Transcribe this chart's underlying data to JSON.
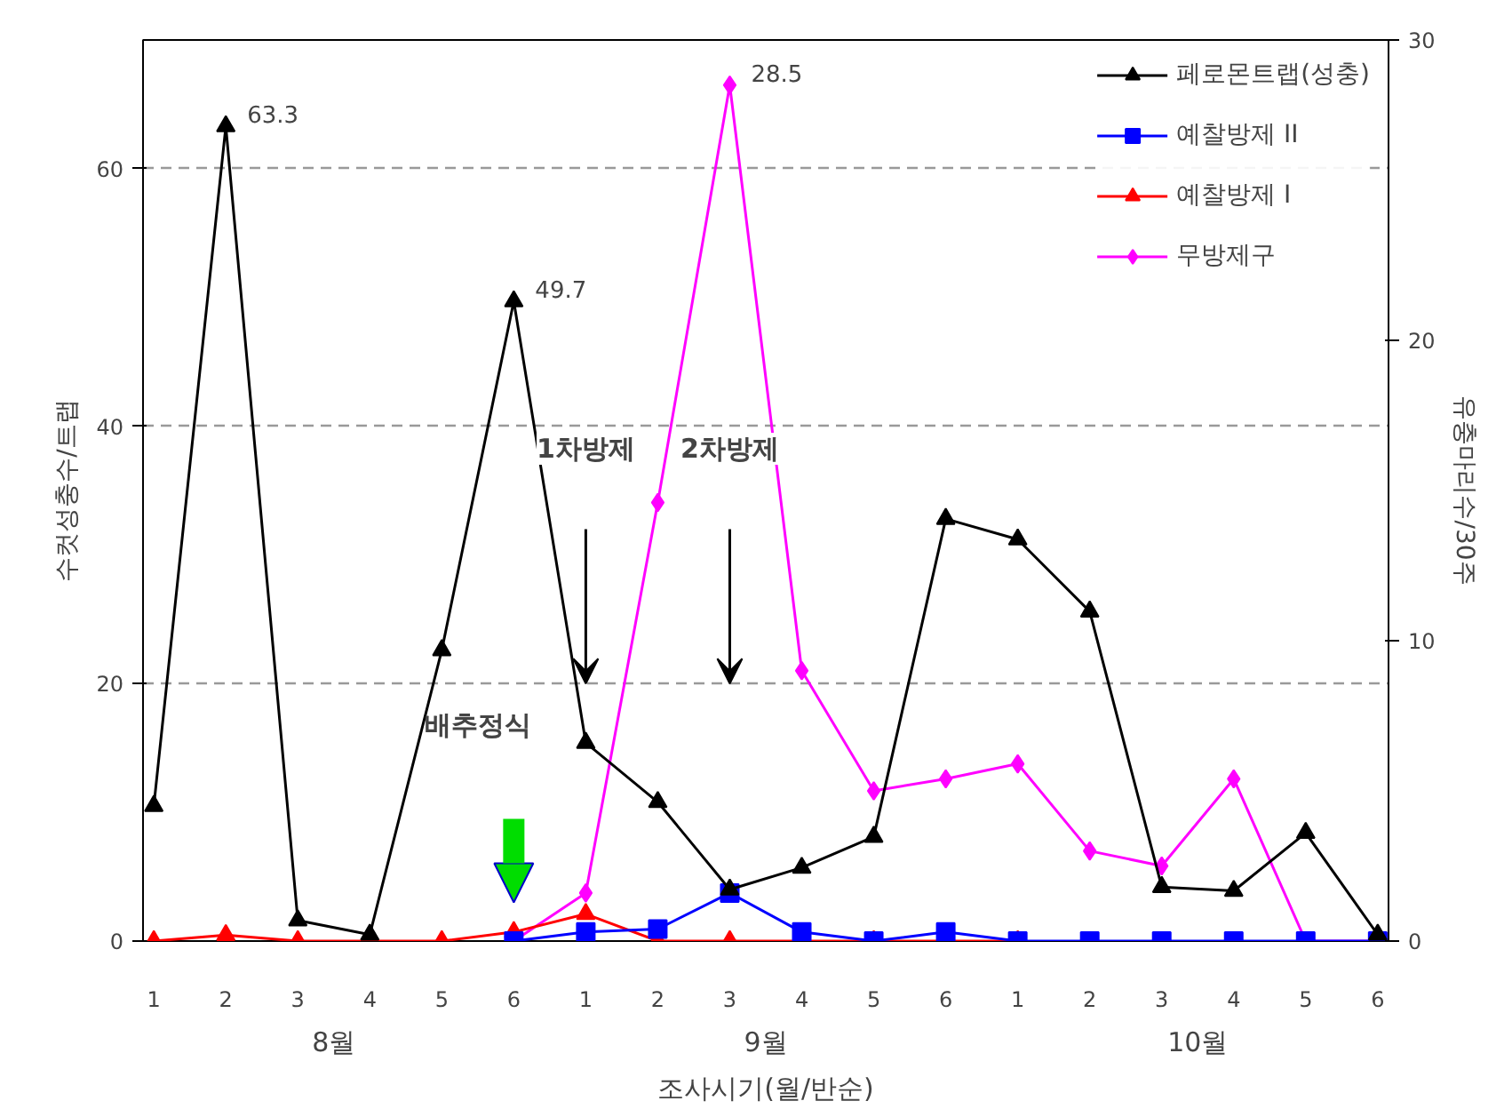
{
  "chart_data": {
    "type": "line",
    "xlabel": "조사시기(월/반순)",
    "ylabel": "수컷성충수/트랩",
    "y2label": "유충마리수/30주",
    "categories": [
      "1",
      "2",
      "3",
      "4",
      "5",
      "6",
      "1",
      "2",
      "3",
      "4",
      "5",
      "6",
      "1",
      "2",
      "3",
      "4",
      "5",
      "6"
    ],
    "ylim": [
      0,
      70
    ],
    "yticks": [
      0,
      20,
      40,
      60
    ],
    "y2lim": [
      0,
      30
    ],
    "y2ticks": [
      0,
      10,
      20,
      30
    ],
    "grid": "y",
    "legend": "top right",
    "series": [
      {
        "name": "페로몬트랩(성충)",
        "color": "#000000",
        "marker": "triangle",
        "values": [
          10.5,
          63.3,
          1.6,
          0.5,
          22.6,
          49.7,
          15.4,
          10.8,
          4.0,
          5.7,
          8.1,
          32.8,
          31.2,
          25.6,
          4.2,
          3.9,
          8.4,
          0.5
        ],
        "value_labels": [
          null,
          "63.3",
          null,
          null,
          null,
          "49.7",
          null,
          null,
          null,
          null,
          null,
          null,
          null,
          null,
          null,
          null,
          null,
          null
        ]
      },
      {
        "name": "예찰방제 II",
        "color": "#0000ff",
        "marker": "square",
        "axis": "y2",
        "values": [
          null,
          null,
          null,
          null,
          null,
          0,
          0.3,
          0.4,
          1.6,
          0.3,
          0,
          0.3,
          0,
          0,
          0,
          0,
          0,
          0
        ]
      },
      {
        "name": "예찰방제 I",
        "color": "#ff0000",
        "marker": "triangle",
        "axis": "y2",
        "values": [
          0,
          0.2,
          0,
          0,
          0,
          0.3,
          0.9,
          0,
          0,
          0,
          0,
          0,
          0,
          null,
          null,
          null,
          null,
          null
        ]
      },
      {
        "name": "무방제구",
        "color": "#ff00ff",
        "marker": "diamond",
        "axis": "y2",
        "values": [
          null,
          null,
          null,
          null,
          null,
          0,
          1.6,
          14.6,
          28.5,
          9.0,
          5.0,
          5.4,
          5.9,
          3.0,
          2.5,
          5.4,
          0,
          0
        ],
        "value_labels": [
          null,
          null,
          null,
          null,
          null,
          null,
          null,
          null,
          "28.5",
          null,
          null,
          null,
          null,
          null,
          null,
          null,
          null,
          null
        ]
      }
    ],
    "annotations": [
      "8월",
      "9월",
      "10월",
      "1차방제",
      "2차방제",
      "배추정식"
    ]
  }
}
